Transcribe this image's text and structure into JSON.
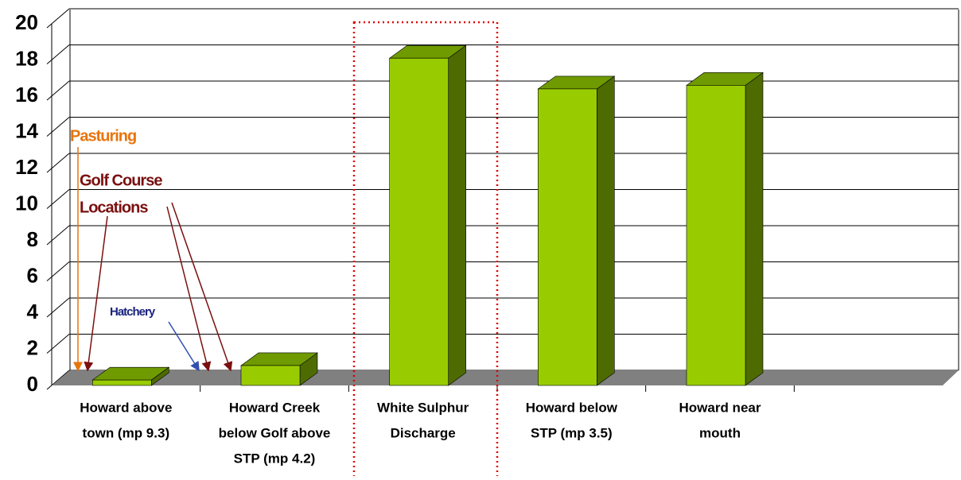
{
  "chart_data": {
    "type": "bar3d",
    "categories": [
      [
        "Howard above",
        "town (mp 9.3)"
      ],
      [
        "Howard Creek",
        "below Golf above",
        "STP (mp 4.2)"
      ],
      [
        "White Sulphur",
        "Discharge"
      ],
      [
        "Howard below",
        "STP (mp 3.5)"
      ],
      [
        "Howard near",
        "mouth"
      ],
      null
    ],
    "values": [
      0.3,
      1.1,
      18.1,
      16.4,
      16.6,
      null
    ],
    "color": "#99cc00",
    "ylim": [
      0,
      20
    ],
    "yticks": [
      0,
      2,
      4,
      6,
      8,
      10,
      12,
      14,
      16,
      18,
      20
    ],
    "grid": true,
    "annotations": [
      {
        "text": "Pasturing",
        "color": "#e8740c"
      },
      {
        "text": "Golf Course",
        "color": "#7a1010"
      },
      {
        "text": "Locations",
        "color": "#7a1010"
      },
      {
        "text": "Hatchery",
        "color": "#1a237e"
      }
    ]
  }
}
